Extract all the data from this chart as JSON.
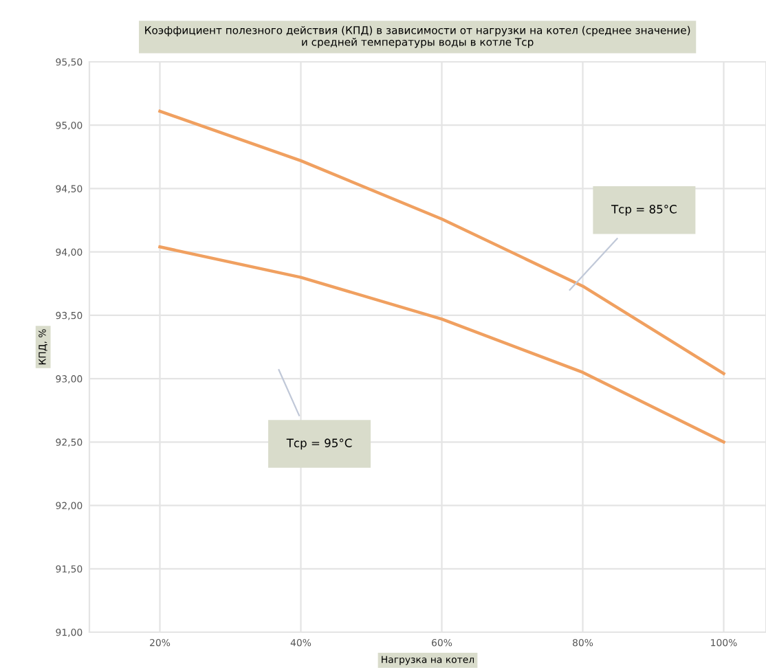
{
  "chart_data": {
    "type": "line",
    "title": "Коэффициент полезного действия (КПД) в зависимости от нагрузки на котел (среднее значение)\nи средней температуры воды в котле Tср",
    "xlabel": "Нагрузка на котел",
    "ylabel": "КПД, %",
    "x": [
      20,
      40,
      60,
      80,
      100
    ],
    "series": [
      {
        "color": "#f0a060",
        "values": [
          95.11,
          94.72,
          94.26,
          93.73,
          93.04
        ]
      },
      {
        "color": "#f0a060",
        "values": [
          94.04,
          93.8,
          93.47,
          93.05,
          92.5
        ]
      }
    ],
    "xlim": [
      10,
      106
    ],
    "xticks": [
      {
        "value": 20,
        "label": "20%"
      },
      {
        "value": 40,
        "label": "40%"
      },
      {
        "value": 60,
        "label": "60%"
      },
      {
        "value": 80,
        "label": "80%"
      },
      {
        "value": 100,
        "label": "100%"
      }
    ],
    "ylim": [
      91,
      95.5
    ],
    "yticks": [
      {
        "value": 91,
        "label": "91,00"
      },
      {
        "value": 91.5,
        "label": "91,50"
      },
      {
        "value": 92,
        "label": "92,00"
      },
      {
        "value": 92.5,
        "label": "92,50"
      },
      {
        "value": 93,
        "label": "93,00"
      },
      {
        "value": 93.5,
        "label": "93,50"
      },
      {
        "value": 94,
        "label": "94,00"
      },
      {
        "value": 94.5,
        "label": "94,50"
      },
      {
        "value": 95,
        "label": "95,00"
      },
      {
        "value": 95.5,
        "label": "95,50"
      }
    ],
    "grid": true,
    "marker": "none",
    "line_style": "solid",
    "annotations": [
      "Tср = 85°C",
      "Tср = 95°C"
    ]
  }
}
